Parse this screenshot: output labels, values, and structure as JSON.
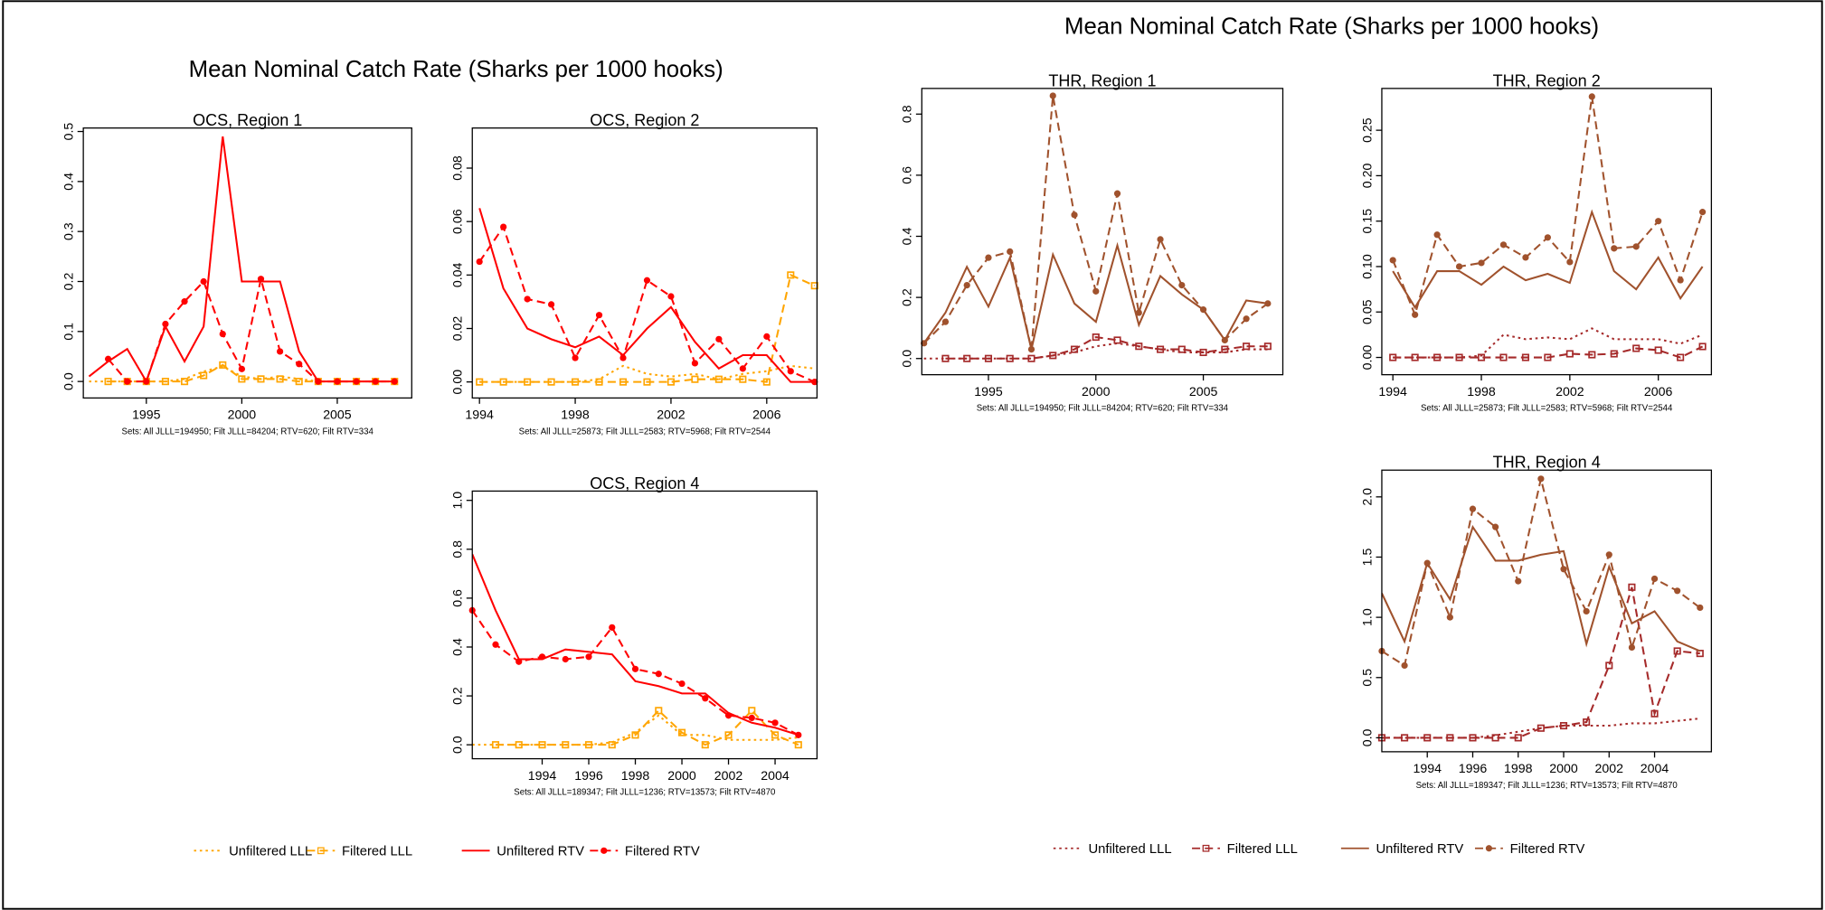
{
  "headings": [
    "Mean Nominal Catch Rate (Sharks per 1000 hooks)",
    "Mean Nominal Catch Rate (Sharks per 1000 hooks)"
  ],
  "chart_data": [
    {
      "type": "line",
      "title": "OCS, Region 1",
      "caption": "Sets:  All JLLL=194950; Filt JLLL=84204; RTV=620; Filt RTV=334",
      "x": [
        1992,
        1993,
        1994,
        1995,
        1996,
        1997,
        1998,
        1999,
        2000,
        2001,
        2002,
        2003,
        2004,
        2005,
        2006,
        2007,
        2008
      ],
      "xlim": [
        1991.7,
        2008.9
      ],
      "xticks": [
        1995,
        2000,
        2005
      ],
      "ylim": [
        -0.033,
        0.507
      ],
      "yticks": [
        {
          "value": 0,
          "label": "0.0"
        },
        0.1,
        0.2,
        0.3,
        0.4,
        0.5
      ],
      "series": [
        {
          "name": "Unfiltered LLL",
          "color": "#ffa500",
          "style": "dotted",
          "marker": null,
          "values": [
            0,
            0,
            0,
            0,
            0,
            0.005,
            0.02,
            0.03,
            0.01,
            0.005,
            0.01,
            0.005,
            0,
            0,
            0,
            0,
            0
          ]
        },
        {
          "name": "Filtered LLL",
          "color": "#ffa500",
          "style": "dashed",
          "marker": "square",
          "values": [
            null,
            0,
            0,
            0,
            0,
            0,
            0.012,
            0.033,
            0.005,
            0.005,
            0.005,
            0,
            0,
            0,
            0,
            0,
            0
          ]
        },
        {
          "name": "Unfiltered RTV",
          "color": "#ff0000",
          "style": "solid",
          "marker": null,
          "values": [
            0.01,
            0.04,
            0.065,
            0,
            0.11,
            0.04,
            0.11,
            0.49,
            0.2,
            0.2,
            0.2,
            0.06,
            0,
            0,
            0,
            0,
            0
          ]
        },
        {
          "name": "Filtered RTV",
          "color": "#ff0000",
          "style": "dashed",
          "marker": "circle",
          "values": [
            null,
            0.045,
            0,
            0,
            0.115,
            0.16,
            0.2,
            0.095,
            0.025,
            0.205,
            0.06,
            0.035,
            0,
            0,
            0,
            0,
            0
          ]
        }
      ]
    },
    {
      "type": "line",
      "title": "OCS, Region 2",
      "caption": "Sets:  All JLLL=25873; Filt JLLL=2583; RTV=5968; Filt RTV=2544",
      "x": [
        1994,
        1995,
        1996,
        1997,
        1998,
        1999,
        2000,
        2001,
        2002,
        2003,
        2004,
        2005,
        2006,
        2007,
        2008
      ],
      "xlim": [
        1993.7,
        2008.1
      ],
      "xticks": [
        1994,
        1998,
        2002,
        2006
      ],
      "ylim": [
        -0.006,
        0.095
      ],
      "yticks": [
        {
          "value": 0,
          "label": "0.00"
        },
        0.02,
        0.04,
        0.06,
        0.08
      ],
      "series": [
        {
          "name": "Unfiltered LLL",
          "color": "#ffa500",
          "style": "dotted",
          "marker": null,
          "values": [
            0,
            0,
            0,
            0,
            0,
            0.001,
            0.006,
            0.003,
            0.002,
            0.003,
            0.001,
            0.003,
            0.004,
            0.006,
            0.005
          ]
        },
        {
          "name": "Filtered LLL",
          "color": "#ffa500",
          "style": "dashed",
          "marker": "square",
          "values": [
            0,
            0,
            0,
            0,
            0,
            0,
            0,
            0,
            0,
            0.001,
            0.001,
            0.001,
            0,
            0.04,
            0.036
          ]
        },
        {
          "name": "Unfiltered RTV",
          "color": "#ff0000",
          "style": "solid",
          "marker": null,
          "values": [
            0.065,
            0.035,
            0.02,
            0.016,
            0.013,
            0.017,
            0.01,
            0.02,
            0.028,
            0.015,
            0.005,
            0.01,
            0.01,
            0,
            0
          ]
        },
        {
          "name": "Filtered RTV",
          "color": "#ff0000",
          "style": "dashed",
          "marker": "circle",
          "values": [
            0.045,
            0.058,
            0.031,
            0.029,
            0.009,
            0.025,
            0.009,
            0.038,
            0.032,
            0.007,
            0.016,
            0.005,
            0.017,
            0.004,
            0
          ]
        }
      ]
    },
    {
      "type": "line",
      "title": "OCS, Region 4",
      "caption": "Sets:  All JLLL=189347; Filt JLLL=1236; RTV=13573; Filt RTV=4870",
      "x": [
        1991,
        1992,
        1993,
        1994,
        1995,
        1996,
        1997,
        1998,
        1999,
        2000,
        2001,
        2002,
        2003,
        2004,
        2005
      ],
      "xlim": [
        1991,
        2005.8
      ],
      "xticks": [
        1994,
        1996,
        1998,
        2000,
        2002,
        2004
      ],
      "ylim": [
        -0.057,
        1.038
      ],
      "yticks": [
        {
          "value": 0,
          "label": "0.0"
        },
        0.2,
        0.4,
        0.6,
        0.8,
        {
          "value": 1,
          "label": "1.0"
        }
      ],
      "series": [
        {
          "name": "Unfiltered LLL",
          "color": "#ffa500",
          "style": "dotted",
          "marker": null,
          "values": [
            0,
            0,
            0,
            0,
            0,
            0,
            0.01,
            0.05,
            0.12,
            0.04,
            0.04,
            0.02,
            0.02,
            0.02,
            0.03
          ]
        },
        {
          "name": "Filtered LLL",
          "color": "#ffa500",
          "style": "dashed",
          "marker": "square",
          "values": [
            null,
            0,
            0,
            0,
            0,
            0,
            0,
            0.04,
            0.14,
            0.05,
            0,
            0.04,
            0.14,
            0.04,
            0
          ]
        },
        {
          "name": "Unfiltered RTV",
          "color": "#ff0000",
          "style": "solid",
          "marker": null,
          "values": [
            0.78,
            0.55,
            0.35,
            0.35,
            0.39,
            0.38,
            0.37,
            0.26,
            0.24,
            0.21,
            0.21,
            0.13,
            0.09,
            0.07,
            0.04
          ]
        },
        {
          "name": "Filtered RTV",
          "color": "#ff0000",
          "style": "dashed",
          "marker": "circle",
          "values": [
            0.55,
            0.41,
            0.34,
            0.36,
            0.35,
            0.36,
            0.48,
            0.31,
            0.29,
            0.25,
            0.19,
            0.12,
            0.11,
            0.09,
            0.04
          ]
        }
      ]
    },
    {
      "type": "line",
      "title": "THR, Region 1",
      "caption": "Sets:  All JLLL=194950; Filt JLLL=84204; RTV=620; Filt RTV=334",
      "x": [
        1992,
        1993,
        1994,
        1995,
        1996,
        1997,
        1998,
        1999,
        2000,
        2001,
        2002,
        2003,
        2004,
        2005,
        2006,
        2007,
        2008
      ],
      "xlim": [
        1991.9,
        2008.7
      ],
      "xticks": [
        1995,
        2000,
        2005
      ],
      "ylim": [
        -0.053,
        0.884
      ],
      "yticks": [
        {
          "value": 0,
          "label": "0.0"
        },
        0.2,
        0.4,
        0.6,
        0.8
      ],
      "series": [
        {
          "name": "Unfiltered LLL",
          "color": "#a52a2a",
          "style": "dotted",
          "marker": null,
          "values": [
            0,
            0,
            0,
            0,
            0,
            0,
            0.01,
            0.02,
            0.04,
            0.05,
            0.04,
            0.03,
            0.02,
            0.02,
            0.02,
            0.03,
            0.03
          ]
        },
        {
          "name": "Filtered LLL",
          "color": "#a52a2a",
          "style": "dashed",
          "marker": "square",
          "values": [
            null,
            0,
            0,
            0,
            0,
            0,
            0.01,
            0.03,
            0.07,
            0.06,
            0.04,
            0.03,
            0.03,
            0.02,
            0.03,
            0.04,
            0.04
          ]
        },
        {
          "name": "Unfiltered RTV",
          "color": "#a0522d",
          "style": "solid",
          "marker": null,
          "values": [
            0.05,
            0.15,
            0.3,
            0.17,
            0.33,
            0.03,
            0.34,
            0.18,
            0.12,
            0.37,
            0.11,
            0.27,
            0.21,
            0.16,
            0.06,
            0.19,
            0.18
          ]
        },
        {
          "name": "Filtered RTV",
          "color": "#a0522d",
          "style": "dashed",
          "marker": "circle",
          "values": [
            0.05,
            0.12,
            0.24,
            0.33,
            0.35,
            0.03,
            0.86,
            0.47,
            0.22,
            0.54,
            0.15,
            0.39,
            0.24,
            0.16,
            0.06,
            0.13,
            0.18
          ]
        }
      ]
    },
    {
      "type": "line",
      "title": "THR, Region 2",
      "caption": "Sets:  All JLLL=25873; Filt JLLL=2583; RTV=5968; Filt RTV=2544",
      "x": [
        1994,
        1995,
        1996,
        1997,
        1998,
        1999,
        2000,
        2001,
        2002,
        2003,
        2004,
        2005,
        2006,
        2007,
        2008
      ],
      "xlim": [
        1993.5,
        2008.4
      ],
      "xticks": [
        1994,
        1998,
        2002,
        2006
      ],
      "ylim": [
        -0.019,
        0.296
      ],
      "yticks": [
        {
          "value": 0,
          "label": "0.00"
        },
        0.05,
        {
          "value": 0.1,
          "label": "0.10"
        },
        0.15,
        {
          "value": 0.2,
          "label": "0.20"
        },
        0.25
      ],
      "series": [
        {
          "name": "Unfiltered LLL",
          "color": "#a52a2a",
          "style": "dotted",
          "marker": null,
          "values": [
            0,
            0,
            0,
            0,
            0.002,
            0.025,
            0.02,
            0.022,
            0.02,
            0.032,
            0.02,
            0.02,
            0.02,
            0.015,
            0.025
          ]
        },
        {
          "name": "Filtered LLL",
          "color": "#a52a2a",
          "style": "dashed",
          "marker": "square",
          "values": [
            0,
            0,
            0,
            0,
            0,
            0,
            0,
            0,
            0.004,
            0.003,
            0.004,
            0.01,
            0.008,
            0,
            0.012
          ]
        },
        {
          "name": "Unfiltered RTV",
          "color": "#a0522d",
          "style": "solid",
          "marker": null,
          "values": [
            0.095,
            0.055,
            0.095,
            0.095,
            0.08,
            0.1,
            0.085,
            0.092,
            0.082,
            0.16,
            0.095,
            0.075,
            0.11,
            0.065,
            0.1
          ]
        },
        {
          "name": "Filtered RTV",
          "color": "#a0522d",
          "style": "dashed",
          "marker": "circle",
          "values": [
            0.107,
            0.047,
            0.135,
            0.1,
            0.104,
            0.124,
            0.11,
            0.132,
            0.105,
            0.287,
            0.12,
            0.122,
            0.15,
            0.085,
            0.16
          ]
        }
      ]
    },
    {
      "type": "line",
      "title": "THR, Region 4",
      "caption": "Sets:  All JLLL=189347; Filt JLLL=1236; RTV=13573; Filt RTV=4870",
      "x": [
        1992,
        1993,
        1994,
        1995,
        1996,
        1997,
        1998,
        1999,
        2000,
        2001,
        2002,
        2003,
        2004,
        2005,
        2006
      ],
      "xlim": [
        1992,
        2006.5
      ],
      "xticks": [
        1994,
        1996,
        1998,
        2000,
        2002,
        2004
      ],
      "ylim": [
        -0.116,
        2.222
      ],
      "yticks": [
        {
          "value": 0,
          "label": "0.0"
        },
        0.5,
        {
          "value": 1,
          "label": "1.0"
        },
        1.5,
        {
          "value": 2,
          "label": "2.0"
        }
      ],
      "series": [
        {
          "name": "Unfiltered LLL",
          "color": "#a52a2a",
          "style": "dotted",
          "marker": null,
          "values": [
            0,
            0,
            0,
            0,
            0,
            0.02,
            0.05,
            0.08,
            0.1,
            0.1,
            0.1,
            0.12,
            0.12,
            0.14,
            0.16
          ]
        },
        {
          "name": "Filtered LLL",
          "color": "#a52a2a",
          "style": "dashed",
          "marker": "square",
          "values": [
            0,
            0,
            0,
            0,
            0,
            0,
            0,
            0.08,
            0.1,
            0.13,
            0.6,
            1.25,
            0.2,
            0.72,
            0.7
          ]
        },
        {
          "name": "Unfiltered RTV",
          "color": "#a0522d",
          "style": "solid",
          "marker": null,
          "values": [
            1.2,
            0.8,
            1.45,
            1.15,
            1.75,
            1.47,
            1.47,
            1.52,
            1.55,
            0.78,
            1.42,
            0.95,
            1.05,
            0.8,
            0.72
          ]
        },
        {
          "name": "Filtered RTV",
          "color": "#a0522d",
          "style": "dashed",
          "marker": "circle",
          "values": [
            0.72,
            0.6,
            1.45,
            1.0,
            1.9,
            1.75,
            1.3,
            2.15,
            1.4,
            1.05,
            1.52,
            0.75,
            1.32,
            1.22,
            1.08
          ]
        }
      ]
    }
  ]
}
